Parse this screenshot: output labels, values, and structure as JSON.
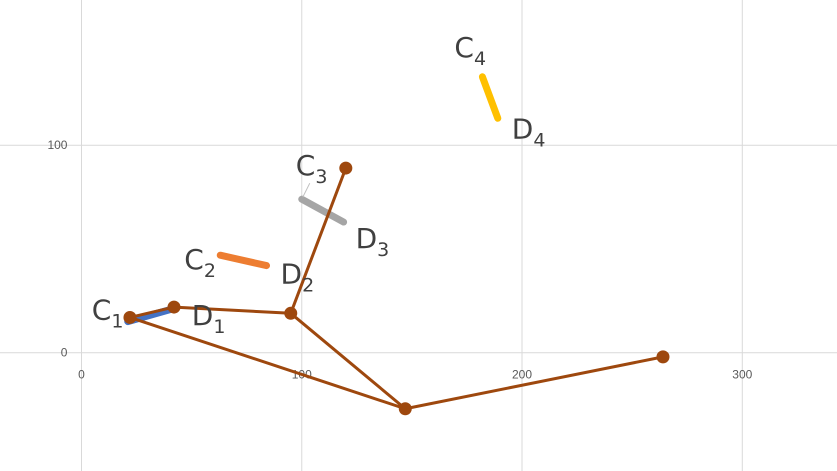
{
  "chart_data": {
    "type": "scatter",
    "title": "",
    "xlabel": "",
    "ylabel": "",
    "xlim": [
      -37,
      343
    ],
    "ylim": [
      -57,
      170
    ],
    "grid": true,
    "x_ticks": [
      0,
      100,
      200,
      300
    ],
    "y_ticks": [
      0,
      100
    ],
    "series": [
      {
        "name": "segment C1-D1",
        "color": "#4472c4",
        "kind": "segment",
        "points": [
          {
            "x": 21,
            "y": 15
          },
          {
            "x": 41,
            "y": 21
          }
        ],
        "labels": {
          "start": "C",
          "start_sub": "1",
          "end": "D",
          "end_sub": "1"
        }
      },
      {
        "name": "segment C2-D2",
        "color": "#ed7d31",
        "kind": "segment",
        "points": [
          {
            "x": 63,
            "y": 47
          },
          {
            "x": 84,
            "y": 42
          }
        ],
        "labels": {
          "start": "C",
          "start_sub": "2",
          "end": "D",
          "end_sub": "2"
        }
      },
      {
        "name": "segment C3-D3",
        "color": "#a5a5a5",
        "kind": "segment",
        "points": [
          {
            "x": 100,
            "y": 74
          },
          {
            "x": 119,
            "y": 63
          }
        ],
        "labels": {
          "start": "C",
          "start_sub": "3",
          "end": "D",
          "end_sub": "3"
        }
      },
      {
        "name": "segment C4-D4",
        "color": "#ffc000",
        "kind": "segment",
        "points": [
          {
            "x": 182,
            "y": 133
          },
          {
            "x": 189,
            "y": 113
          }
        ],
        "labels": {
          "start": "C",
          "start_sub": "4",
          "end": "D",
          "end_sub": "4"
        }
      },
      {
        "name": "polyline",
        "color": "#9e480e",
        "kind": "polyline",
        "points": [
          {
            "x": 22,
            "y": 17
          },
          {
            "x": 42,
            "y": 22
          },
          {
            "x": 95,
            "y": 19
          },
          {
            "x": 120,
            "y": 89
          },
          {
            "x": 95,
            "y": 19
          },
          {
            "x": 147,
            "y": -27
          },
          {
            "x": 264,
            "y": -2
          },
          {
            "x": 147,
            "y": -27
          },
          {
            "x": 22,
            "y": 17
          }
        ],
        "markers": [
          {
            "x": 22,
            "y": 17
          },
          {
            "x": 42,
            "y": 22
          },
          {
            "x": 95,
            "y": 19
          },
          {
            "x": 120,
            "y": 89
          },
          {
            "x": 147,
            "y": -27
          },
          {
            "x": 264,
            "y": -2
          }
        ]
      }
    ]
  }
}
